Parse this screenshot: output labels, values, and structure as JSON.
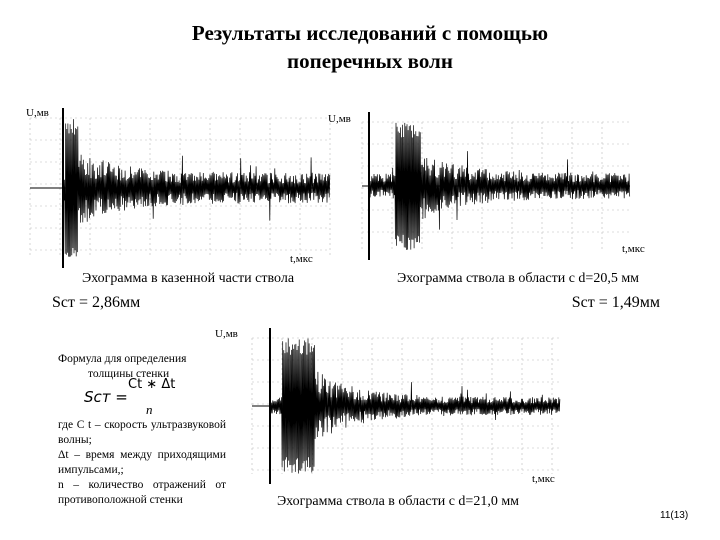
{
  "header": {
    "title_lines": [
      "Результаты исследований с помощью",
      "поперечных волн"
    ]
  },
  "panels": [
    {
      "y_label": "U,мв",
      "x_label": "t,мкс",
      "caption": "Эхограмма в казенной части ствола",
      "result": "Sст = 2,86мм"
    },
    {
      "y_label": "U,мв",
      "x_label": "t,мкс",
      "caption": "Эхограмма ствола в области с d=20,5 мм",
      "result": "Sст = 1,49мм"
    },
    {
      "y_label": "U,мв",
      "x_label": "t,мкс",
      "caption": "Эхограмма ствола в области с d=21,0 мм"
    }
  ],
  "formula": {
    "heading": "Формула для определения толщины стенки",
    "lhs": "Sст =",
    "numerator": "Ct ∗ Δt",
    "denominator": "n",
    "notes": [
      "где C t – скорость ультразвуковой волны;",
      "Δt – время между приходящими импульсами,;",
      "n – количество отражений от противоположной стенки"
    ]
  },
  "footer": {
    "page": "11(13)"
  }
}
